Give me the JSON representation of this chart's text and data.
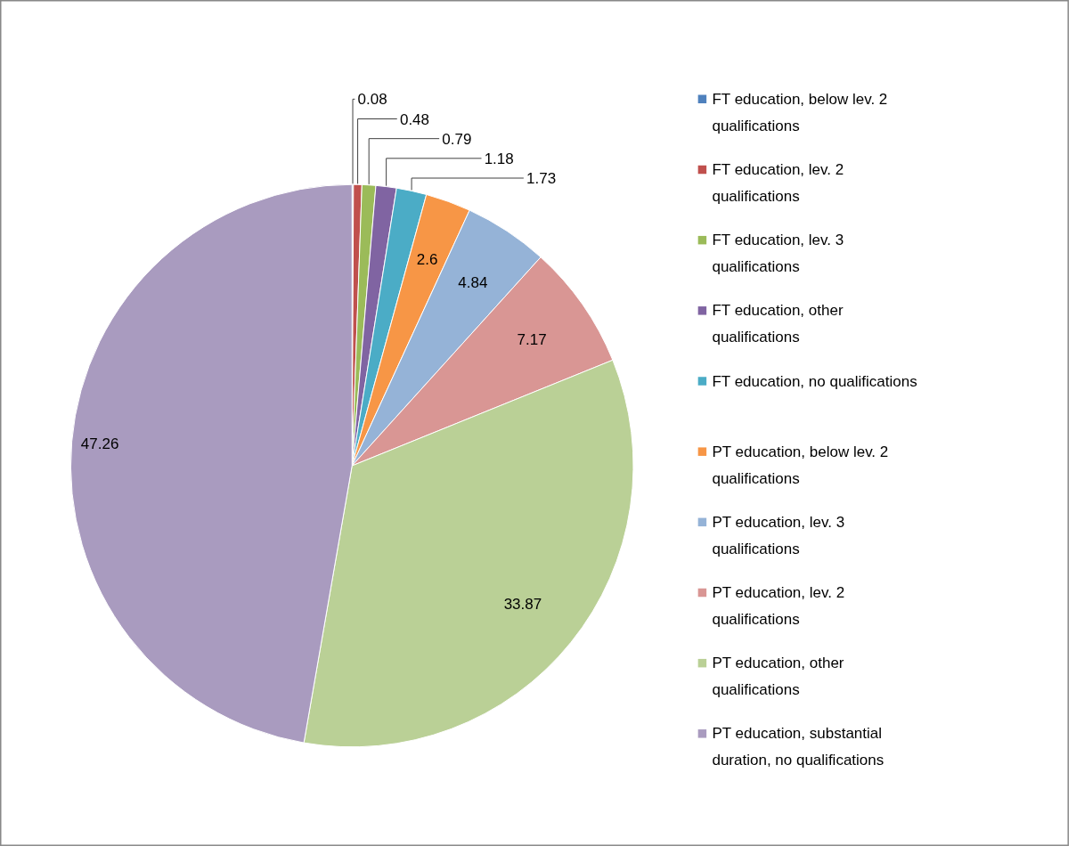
{
  "chart_data": {
    "type": "pie",
    "categories": [
      "FT education, below lev. 2 qualifications",
      "FT education, lev. 2 qualifications",
      "FT education, lev. 3 qualifications",
      "FT education, other qualifications",
      "FT education, no qualifications",
      "PT education, below lev. 2 qualifications",
      "PT education, lev. 3 qualifications",
      "PT education, lev. 2 qualifications",
      "PT education, other qualifications",
      "PT education, substantial duration, no qualifications"
    ],
    "values": [
      0.08,
      0.48,
      0.79,
      1.18,
      1.73,
      2.6,
      4.84,
      7.17,
      33.87,
      47.26
    ],
    "colors": [
      "#4f81bd",
      "#c0504d",
      "#9bbb59",
      "#8064a2",
      "#4bacc6",
      "#f79646",
      "#95b3d7",
      "#d99694",
      "#bad096",
      "#a99bbf"
    ],
    "data_labels": true,
    "legend": "right"
  }
}
